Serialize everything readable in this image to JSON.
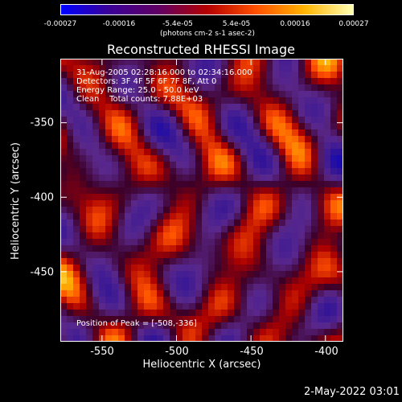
{
  "colorbar": {
    "ticks": [
      "-0.00027",
      "-0.00016",
      "-5.4e-05",
      "5.4e-05",
      "0.00016",
      "0.00027"
    ],
    "unit": "(photons cm-2 s-1 asec-2)",
    "colors": [
      "#0000ff",
      "#3c0096",
      "#600064",
      "#b40000",
      "#ff5000",
      "#ffb400",
      "#ffffb4"
    ],
    "range": [
      -0.00027,
      0.00027
    ]
  },
  "chart_data": {
    "type": "heatmap",
    "title": "Reconstructed RHESSI Image",
    "xlabel": "Heliocentric X (arcsec)",
    "ylabel": "Heliocentric Y (arcsec)",
    "xlim": [
      -578,
      -388
    ],
    "ylim": [
      -497,
      -307
    ],
    "xticks": [
      -550,
      -500,
      -450,
      -400
    ],
    "yticks": [
      -350,
      -400,
      -450
    ],
    "value_range": [
      -0.00027,
      0.00027
    ],
    "grid_size": 44,
    "annotations": {
      "line1": "31-Aug-2005 02:28:16.000 to 02:34:16.000",
      "line2": "Detectors: 3F 4F 5F 6F 7F 8F, Att 0",
      "line3": "Energy Range: 25.0 - 50.0 keV",
      "line4": "Clean    Total counts: 7.88E+03",
      "peak": "Position of Peak = [-508,-336]"
    }
  },
  "footer": {
    "date": "2-May-2022 03:01"
  }
}
